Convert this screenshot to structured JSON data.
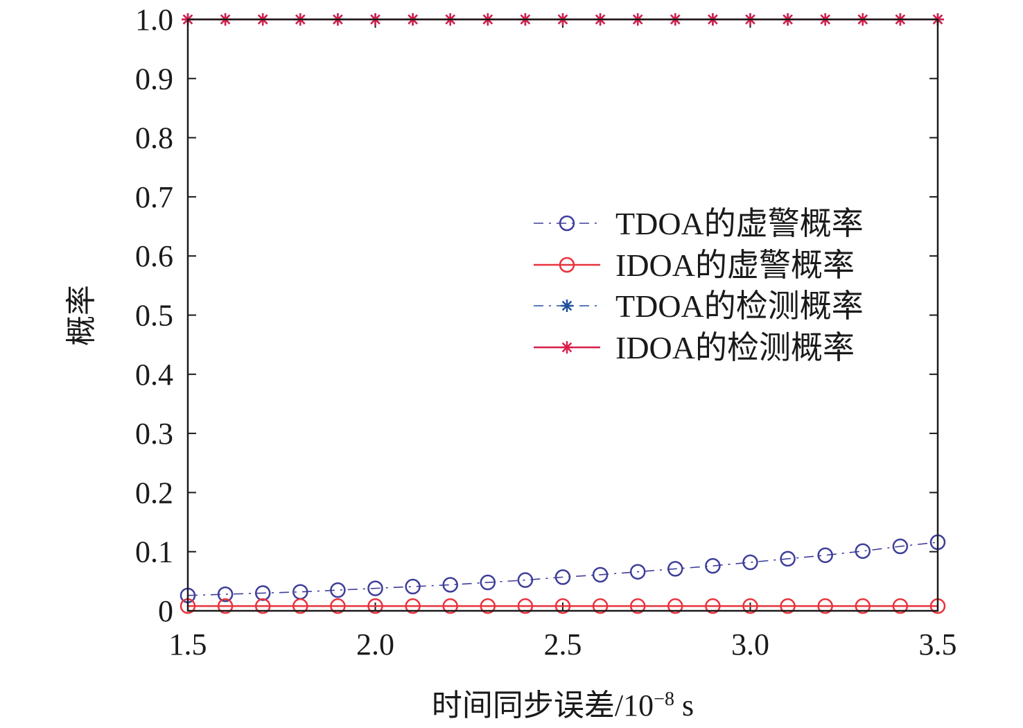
{
  "chart_data": {
    "type": "line",
    "xlabel": "时间同步误差/10",
    "xlabel_exponent": "−8",
    "xlabel_unit": " s",
    "ylabel": "概率",
    "xlim": [
      1.5,
      3.5
    ],
    "ylim": [
      0,
      1.0
    ],
    "x_ticks": [
      "1.5",
      "2.0",
      "2.5",
      "3.0",
      "3.5"
    ],
    "y_ticks": [
      "0",
      "0.1",
      "0.2",
      "0.3",
      "0.4",
      "0.5",
      "0.6",
      "0.7",
      "0.8",
      "0.9",
      "1.0"
    ],
    "x_tick_values": [
      1.5,
      2.0,
      2.5,
      3.0,
      3.5
    ],
    "y_tick_values": [
      0,
      0.1,
      0.2,
      0.3,
      0.4,
      0.5,
      0.6,
      0.7,
      0.8,
      0.9,
      1.0
    ],
    "grid": false,
    "legend_position": "right-middle",
    "x": [
      1.5,
      1.6,
      1.7,
      1.8,
      1.9,
      2.0,
      2.1,
      2.2,
      2.3,
      2.4,
      2.5,
      2.6,
      2.7,
      2.8,
      2.9,
      3.0,
      3.1,
      3.2,
      3.3,
      3.4,
      3.5
    ],
    "series": [
      {
        "name": "TDOA的虚警概率",
        "marker": "circle",
        "line_style": "dashdot",
        "color": "#3d3d9a",
        "values": [
          0.026,
          0.028,
          0.03,
          0.032,
          0.035,
          0.038,
          0.041,
          0.044,
          0.048,
          0.052,
          0.057,
          0.061,
          0.066,
          0.071,
          0.076,
          0.082,
          0.088,
          0.094,
          0.101,
          0.109,
          0.116
        ]
      },
      {
        "name": "IDOA的虚警概率",
        "marker": "circle",
        "line_style": "solid",
        "color": "#e8323c",
        "values": [
          0.008,
          0.008,
          0.008,
          0.008,
          0.008,
          0.008,
          0.008,
          0.008,
          0.008,
          0.008,
          0.008,
          0.008,
          0.008,
          0.008,
          0.008,
          0.008,
          0.008,
          0.008,
          0.008,
          0.008,
          0.008
        ]
      },
      {
        "name": "TDOA的检测概率",
        "marker": "star",
        "line_style": "dashdot",
        "color": "#1f4e9c",
        "values": [
          1.0,
          1.0,
          1.0,
          1.0,
          1.0,
          1.0,
          1.0,
          1.0,
          1.0,
          1.0,
          1.0,
          1.0,
          1.0,
          1.0,
          1.0,
          1.0,
          1.0,
          1.0,
          1.0,
          1.0,
          1.0
        ]
      },
      {
        "name": "IDOA的检测概率",
        "marker": "star",
        "line_style": "solid",
        "color": "#d81e48",
        "values": [
          1.0,
          1.0,
          1.0,
          1.0,
          1.0,
          1.0,
          1.0,
          1.0,
          1.0,
          1.0,
          1.0,
          1.0,
          1.0,
          1.0,
          1.0,
          1.0,
          1.0,
          1.0,
          1.0,
          1.0,
          1.0
        ]
      }
    ]
  }
}
